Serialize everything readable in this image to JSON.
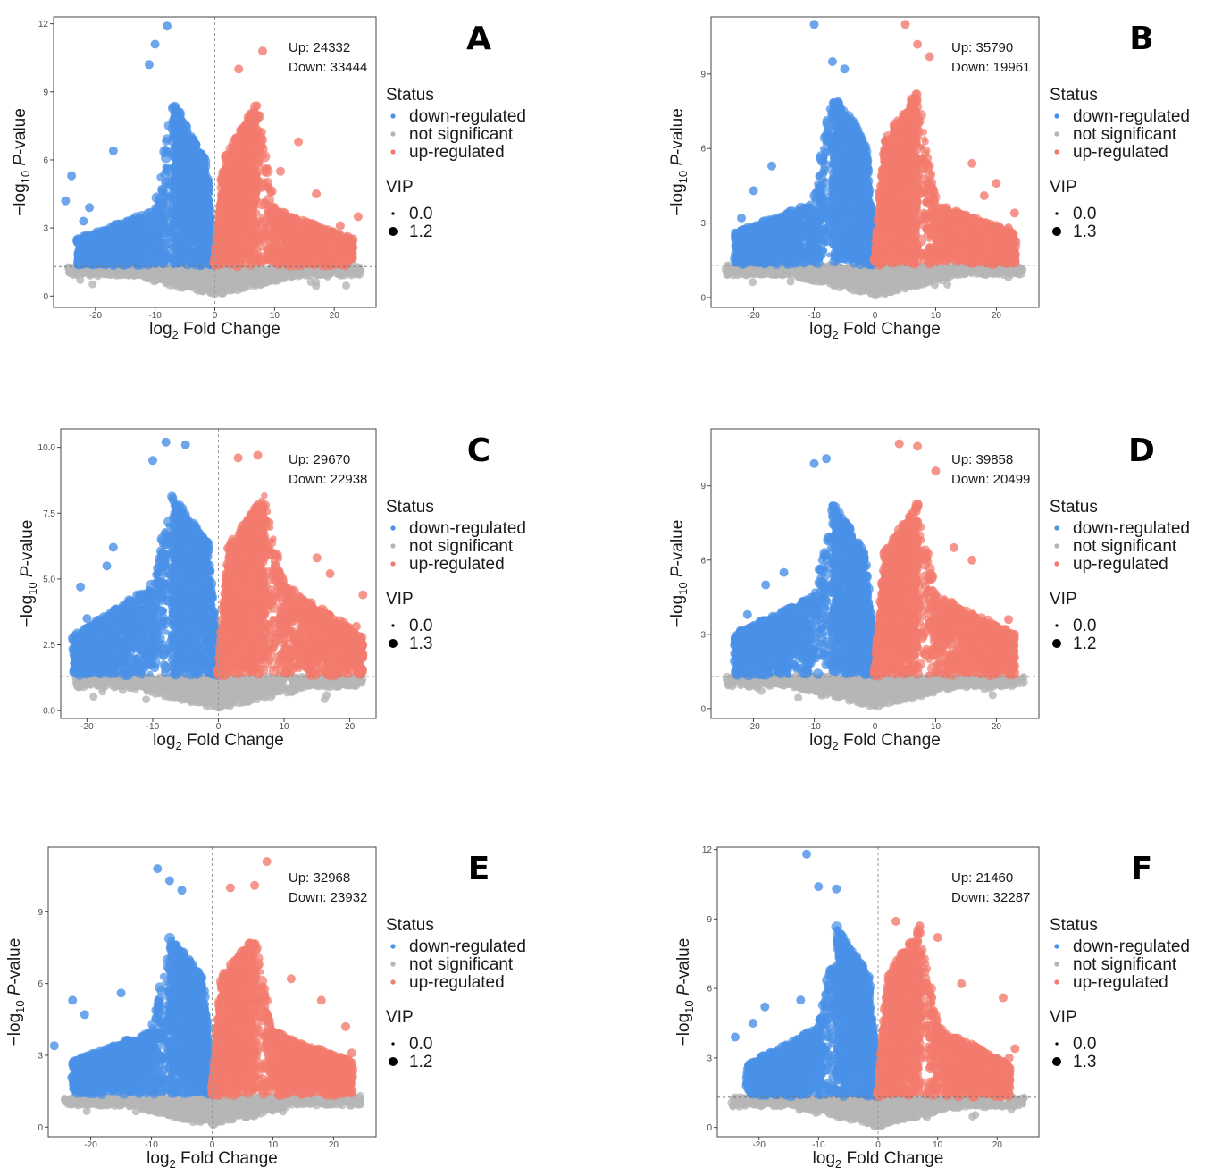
{
  "chart_data": [
    {
      "type": "scatter",
      "panel": "A",
      "up_label": "Up: 24332",
      "down_label": "Down: 33444",
      "xlabel_main": "log",
      "xlabel_sub": "2",
      "xlabel_rest": " Fold Change",
      "ylabel_main": "−log",
      "ylabel_sub": "10",
      "ylabel_rest": " P-value",
      "xlim": [
        -27,
        27
      ],
      "ylim": [
        -0.5,
        12.3
      ],
      "xticks": [
        -20,
        -10,
        0,
        10,
        20
      ],
      "yticks": [
        0,
        3,
        6,
        9,
        12
      ],
      "ytick_labels": [
        "0",
        "3",
        "6",
        "9",
        "12"
      ],
      "threshold_y": 1.3,
      "threshold_x": 0,
      "envelope": {
        "inner": 4.5,
        "peak": 8.6,
        "mid": 3.8,
        "edge": 2.5,
        "maxx": 23
      },
      "outliers_down": [
        [
          -8,
          11.9
        ],
        [
          -10,
          11.1
        ],
        [
          -11,
          10.2
        ],
        [
          -24,
          5.3
        ],
        [
          -25,
          4.2
        ],
        [
          -17,
          6.4
        ],
        [
          -21,
          3.9
        ],
        [
          -22,
          3.3
        ]
      ],
      "outliers_up": [
        [
          8,
          10.8
        ],
        [
          4,
          10.0
        ],
        [
          14,
          6.8
        ],
        [
          11,
          5.5
        ],
        [
          24,
          3.5
        ],
        [
          21,
          3.1
        ],
        [
          17,
          4.5
        ]
      ],
      "series": [
        {
          "name": "down-regulated",
          "color": "#4a90e8"
        },
        {
          "name": "not significant",
          "color": "#b5b5b5"
        },
        {
          "name": "up-regulated",
          "color": "#f27b6e"
        }
      ],
      "legend": {
        "status_title": "Status",
        "vip_title": "VIP",
        "vip_small": "0.0",
        "vip_large": "1.2"
      }
    },
    {
      "type": "scatter",
      "panel": "B",
      "up_label": "Up: 35790",
      "down_label": "Down: 19961",
      "xlabel_main": "log",
      "xlabel_sub": "2",
      "xlabel_rest": " Fold Change",
      "ylabel_main": "−log",
      "ylabel_sub": "10",
      "ylabel_rest": " P-value",
      "xlim": [
        -27,
        27
      ],
      "ylim": [
        -0.4,
        11.3
      ],
      "xticks": [
        -20,
        -10,
        0,
        10,
        20
      ],
      "yticks": [
        0,
        3,
        6,
        9
      ],
      "ytick_labels": [
        "0",
        "3",
        "6",
        "9"
      ],
      "threshold_y": 1.3,
      "threshold_x": 0,
      "envelope": {
        "inner": 4.8,
        "peak": 8.3,
        "mid": 3.8,
        "edge": 2.6,
        "maxx": 23
      },
      "outliers_down": [
        [
          -10,
          11.0
        ],
        [
          -7,
          9.5
        ],
        [
          -5,
          9.2
        ],
        [
          -17,
          5.3
        ],
        [
          -22,
          3.2
        ],
        [
          -23,
          2.6
        ],
        [
          -20,
          4.3
        ]
      ],
      "outliers_up": [
        [
          5,
          11.0
        ],
        [
          7,
          10.2
        ],
        [
          9,
          9.7
        ],
        [
          16,
          5.4
        ],
        [
          20,
          4.6
        ],
        [
          23,
          3.4
        ],
        [
          22,
          2.8
        ],
        [
          18,
          4.1
        ]
      ],
      "series": [
        {
          "name": "down-regulated",
          "color": "#4a90e8"
        },
        {
          "name": "not significant",
          "color": "#b5b5b5"
        },
        {
          "name": "up-regulated",
          "color": "#f27b6e"
        }
      ],
      "legend": {
        "status_title": "Status",
        "vip_title": "VIP",
        "vip_small": "0.0",
        "vip_large": "1.3"
      }
    },
    {
      "type": "scatter",
      "panel": "C",
      "up_label": "Up: 29670",
      "down_label": "Down: 22938",
      "xlabel_main": "log",
      "xlabel_sub": "2",
      "xlabel_rest": " Fold Change",
      "ylabel_main": "−log",
      "ylabel_sub": "10",
      "ylabel_rest": " P-value",
      "xlim": [
        -24,
        24
      ],
      "ylim": [
        -0.3,
        10.7
      ],
      "xticks": [
        -20,
        -10,
        0,
        10,
        20
      ],
      "yticks": [
        0,
        2.5,
        5,
        7.5,
        10
      ],
      "ytick_labels": [
        "0.0",
        "2.5",
        "5.0",
        "7.5",
        "10.0"
      ],
      "threshold_y": 1.3,
      "threshold_x": 0,
      "envelope": {
        "inner": 4.8,
        "peak": 8.2,
        "mid": 4.8,
        "edge": 2.8,
        "maxx": 22
      },
      "outliers_down": [
        [
          -8,
          10.2
        ],
        [
          -5,
          10.1
        ],
        [
          -10,
          9.5
        ],
        [
          -16,
          6.2
        ],
        [
          -21,
          4.7
        ],
        [
          -20,
          3.5
        ],
        [
          -17,
          5.5
        ]
      ],
      "outliers_up": [
        [
          3,
          9.6
        ],
        [
          6,
          9.7
        ],
        [
          15,
          5.8
        ],
        [
          17,
          5.2
        ],
        [
          22,
          4.4
        ],
        [
          21,
          3.2
        ],
        [
          22,
          2.5
        ]
      ],
      "series": [
        {
          "name": "down-regulated",
          "color": "#4a90e8"
        },
        {
          "name": "not significant",
          "color": "#b5b5b5"
        },
        {
          "name": "up-regulated",
          "color": "#f27b6e"
        }
      ],
      "legend": {
        "status_title": "Status",
        "vip_title": "VIP",
        "vip_small": "0.0",
        "vip_large": "1.3"
      }
    },
    {
      "type": "scatter",
      "panel": "D",
      "up_label": "Up: 39858",
      "down_label": "Down: 20499",
      "xlabel_main": "log",
      "xlabel_sub": "2",
      "xlabel_rest": " Fold Change",
      "ylabel_main": "−log",
      "ylabel_sub": "10",
      "ylabel_rest": " P-value",
      "xlim": [
        -27,
        27
      ],
      "ylim": [
        -0.4,
        11.3
      ],
      "xticks": [
        -20,
        -10,
        0,
        10,
        20
      ],
      "yticks": [
        0,
        3,
        6,
        9
      ],
      "ytick_labels": [
        "0",
        "3",
        "6",
        "9"
      ],
      "threshold_y": 1.3,
      "threshold_x": 0,
      "envelope": {
        "inner": 4.8,
        "peak": 8.3,
        "mid": 4.6,
        "edge": 3.0,
        "maxx": 23
      },
      "outliers_down": [
        [
          -10,
          9.9
        ],
        [
          -8,
          10.1
        ],
        [
          -15,
          5.5
        ],
        [
          -21,
          3.8
        ],
        [
          -22,
          2.6
        ],
        [
          -18,
          5.0
        ]
      ],
      "outliers_up": [
        [
          4,
          10.7
        ],
        [
          7,
          10.6
        ],
        [
          10,
          9.6
        ],
        [
          13,
          6.5
        ],
        [
          16,
          6.0
        ],
        [
          22,
          3.6
        ],
        [
          23,
          3.0
        ]
      ],
      "series": [
        {
          "name": "down-regulated",
          "color": "#4a90e8"
        },
        {
          "name": "not significant",
          "color": "#b5b5b5"
        },
        {
          "name": "up-regulated",
          "color": "#f27b6e"
        }
      ],
      "legend": {
        "status_title": "Status",
        "vip_title": "VIP",
        "vip_small": "0.0",
        "vip_large": "1.2"
      }
    },
    {
      "type": "scatter",
      "panel": "E",
      "up_label": "Up: 32968",
      "down_label": "Down: 23932",
      "xlabel_main": "log",
      "xlabel_sub": "2",
      "xlabel_rest": " Fold Change",
      "ylabel_main": "−log",
      "ylabel_sub": "10",
      "ylabel_rest": " P-value",
      "xlim": [
        -27,
        27
      ],
      "ylim": [
        -0.4,
        11.7
      ],
      "xticks": [
        -20,
        -10,
        0,
        10,
        20
      ],
      "yticks": [
        0,
        3,
        6,
        9
      ],
      "ytick_labels": [
        "0",
        "3",
        "6",
        "9"
      ],
      "threshold_y": 1.3,
      "threshold_x": 0,
      "envelope": {
        "inner": 4.8,
        "peak": 8.0,
        "mid": 4.0,
        "edge": 2.7,
        "maxx": 23
      },
      "outliers_down": [
        [
          -9,
          10.8
        ],
        [
          -7,
          10.3
        ],
        [
          -5,
          9.9
        ],
        [
          -15,
          5.6
        ],
        [
          -23,
          5.3
        ],
        [
          -26,
          3.4
        ],
        [
          -21,
          4.7
        ]
      ],
      "outliers_up": [
        [
          9,
          11.1
        ],
        [
          3,
          10.0
        ],
        [
          7,
          10.1
        ],
        [
          13,
          6.2
        ],
        [
          18,
          5.3
        ],
        [
          22,
          4.2
        ],
        [
          23,
          3.1
        ]
      ],
      "series": [
        {
          "name": "down-regulated",
          "color": "#4a90e8"
        },
        {
          "name": "not significant",
          "color": "#b5b5b5"
        },
        {
          "name": "up-regulated",
          "color": "#f27b6e"
        }
      ],
      "legend": {
        "status_title": "Status",
        "vip_title": "VIP",
        "vip_small": "0.0",
        "vip_large": "1.2"
      }
    },
    {
      "type": "scatter",
      "panel": "F",
      "up_label": "Up: 21460",
      "down_label": "Down: 32287",
      "xlabel_main": "log",
      "xlabel_sub": "2",
      "xlabel_rest": " Fold Change",
      "ylabel_main": "−log",
      "ylabel_sub": "10",
      "ylabel_rest": " P-value",
      "xlim": [
        -27,
        27
      ],
      "ylim": [
        -0.4,
        12.1
      ],
      "xticks": [
        -20,
        -10,
        0,
        10,
        20
      ],
      "yticks": [
        0,
        3,
        6,
        9,
        12
      ],
      "ytick_labels": [
        "0",
        "3",
        "6",
        "9",
        "12"
      ],
      "threshold_y": 1.3,
      "threshold_x": 0,
      "envelope": {
        "inner": 5.0,
        "peak": 8.7,
        "mid": 4.3,
        "edge": 2.7,
        "maxx": 22
      },
      "outliers_down": [
        [
          -12,
          11.8
        ],
        [
          -10,
          10.4
        ],
        [
          -7,
          10.3
        ],
        [
          -19,
          5.2
        ],
        [
          -24,
          3.9
        ],
        [
          -13,
          5.5
        ],
        [
          -21,
          4.5
        ]
      ],
      "outliers_up": [
        [
          3,
          8.9
        ],
        [
          7,
          8.7
        ],
        [
          10,
          8.2
        ],
        [
          14,
          6.2
        ],
        [
          21,
          5.6
        ],
        [
          23,
          3.4
        ],
        [
          22,
          3.0
        ]
      ],
      "series": [
        {
          "name": "down-regulated",
          "color": "#4a90e8"
        },
        {
          "name": "not significant",
          "color": "#b5b5b5"
        },
        {
          "name": "up-regulated",
          "color": "#f27b6e"
        }
      ],
      "legend": {
        "status_title": "Status",
        "vip_title": "VIP",
        "vip_small": "0.0",
        "vip_large": "1.3"
      }
    }
  ]
}
